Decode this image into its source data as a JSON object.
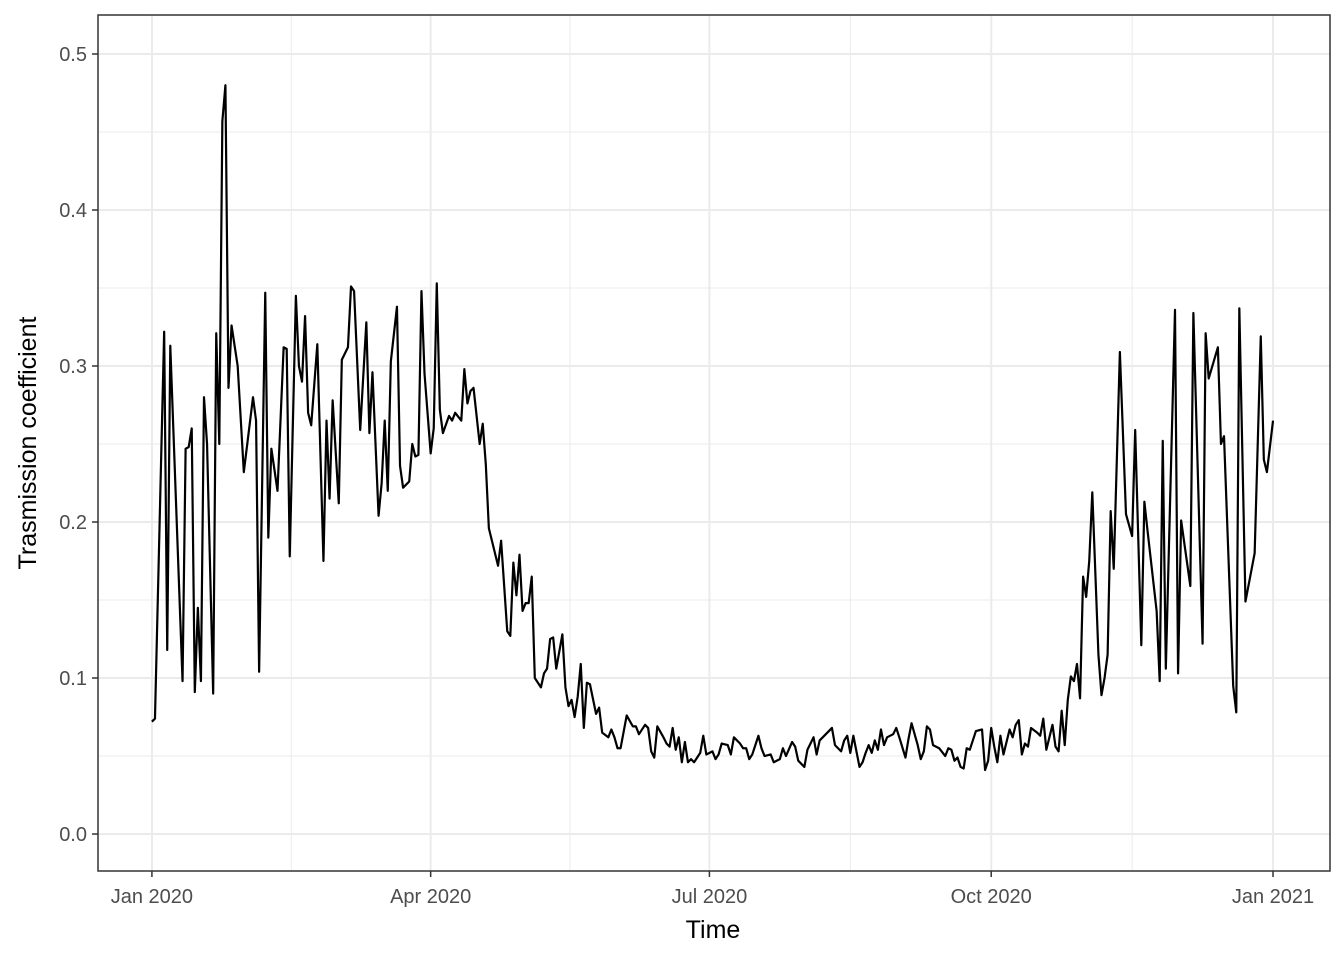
{
  "chart_data": {
    "type": "line",
    "x_label": "Time",
    "y_label": "Trasmission coefficient",
    "xlim": [
      -17.6,
      384.6
    ],
    "ylim": [
      -0.0237,
      0.525
    ],
    "xticks": [
      {
        "value": 0,
        "label": "Jan 2020"
      },
      {
        "value": 91,
        "label": "Apr 2020"
      },
      {
        "value": 182,
        "label": "Jul 2020"
      },
      {
        "value": 274,
        "label": "Oct 2020"
      },
      {
        "value": 366,
        "label": "Jan 2021"
      }
    ],
    "xminorticks": [
      45.5,
      136.5,
      228,
      320
    ],
    "yticks": [
      {
        "value": 0,
        "label": "0.0"
      },
      0.1,
      0.2,
      0.3,
      0.4,
      0.5
    ],
    "yminorticks": [
      0.05,
      0.15,
      0.25,
      0.35,
      0.45
    ],
    "grid": true,
    "series": [
      {
        "name": "Trasmission coefficient",
        "color": "#000000",
        "x": [
          0,
          1,
          4,
          5,
          6,
          10,
          11,
          12,
          13,
          14,
          15,
          16,
          17,
          18,
          20,
          21,
          22,
          23,
          24,
          25,
          26,
          28,
          30,
          33,
          34,
          35,
          37,
          38,
          39,
          41,
          43,
          44,
          45,
          47,
          48,
          49,
          50,
          51,
          52,
          54,
          56,
          57,
          58,
          59,
          61,
          62,
          64,
          65,
          66,
          68,
          70,
          71,
          72,
          74,
          75,
          76,
          77,
          78,
          80,
          81,
          82,
          84,
          85,
          86,
          87,
          88,
          89,
          91,
          92,
          93,
          94,
          95,
          97,
          98,
          99,
          101,
          102,
          103,
          104,
          105,
          107,
          108,
          109,
          110,
          113,
          114,
          116,
          117,
          118,
          119,
          120,
          121,
          122,
          123,
          124,
          125,
          127,
          128,
          129,
          130,
          131,
          132,
          134,
          135,
          136,
          137,
          138,
          139,
          140,
          141,
          142,
          143,
          145,
          146,
          147,
          149,
          150,
          151,
          152,
          153,
          155,
          157,
          158,
          159,
          161,
          162,
          163,
          164,
          165,
          167,
          168,
          169,
          170,
          171,
          172,
          173,
          174,
          175,
          176,
          177,
          179,
          180,
          181,
          183,
          184,
          185,
          186,
          188,
          189,
          190,
          192,
          193,
          194,
          195,
          196,
          198,
          199,
          200,
          202,
          203,
          205,
          206,
          207,
          209,
          210,
          211,
          213,
          214,
          216,
          217,
          218,
          219,
          221,
          222,
          223,
          225,
          226,
          227,
          228,
          229,
          231,
          232,
          233,
          234,
          235,
          236,
          237,
          238,
          239,
          240,
          242,
          243,
          244,
          246,
          247,
          248,
          250,
          251,
          252,
          253,
          254,
          255,
          257,
          259,
          260,
          261,
          262,
          263,
          264,
          265,
          266,
          267,
          269,
          271,
          272,
          273,
          274,
          275,
          276,
          277,
          278,
          280,
          281,
          282,
          283,
          284,
          285,
          286,
          287,
          289,
          290,
          291,
          292,
          294,
          295,
          296,
          297,
          298,
          299,
          300,
          301,
          302,
          303,
          304,
          305,
          306,
          307,
          309,
          310,
          311,
          312,
          313,
          314,
          316,
          318,
          320,
          321,
          323,
          324,
          325,
          328,
          329,
          330,
          331,
          334,
          335,
          336,
          339,
          340,
          343,
          344,
          345,
          348,
          349,
          350,
          353,
          354,
          355,
          357,
          360,
          362,
          363,
          364,
          366
        ],
        "values": [
          0.072,
          0.074,
          0.322,
          0.118,
          0.313,
          0.098,
          0.247,
          0.248,
          0.26,
          0.091,
          0.145,
          0.098,
          0.28,
          0.25,
          0.09,
          0.321,
          0.25,
          0.457,
          0.48,
          0.286,
          0.326,
          0.3,
          0.232,
          0.28,
          0.265,
          0.104,
          0.347,
          0.19,
          0.247,
          0.22,
          0.312,
          0.311,
          0.178,
          0.345,
          0.3,
          0.29,
          0.332,
          0.27,
          0.262,
          0.314,
          0.175,
          0.265,
          0.215,
          0.278,
          0.212,
          0.304,
          0.312,
          0.351,
          0.348,
          0.259,
          0.328,
          0.257,
          0.296,
          0.204,
          0.225,
          0.265,
          0.22,
          0.303,
          0.338,
          0.236,
          0.222,
          0.226,
          0.25,
          0.242,
          0.243,
          0.348,
          0.295,
          0.244,
          0.26,
          0.353,
          0.272,
          0.257,
          0.268,
          0.265,
          0.27,
          0.265,
          0.298,
          0.276,
          0.284,
          0.286,
          0.25,
          0.263,
          0.237,
          0.196,
          0.172,
          0.188,
          0.13,
          0.127,
          0.174,
          0.153,
          0.179,
          0.143,
          0.148,
          0.148,
          0.165,
          0.1,
          0.094,
          0.103,
          0.106,
          0.125,
          0.126,
          0.106,
          0.128,
          0.094,
          0.082,
          0.086,
          0.075,
          0.088,
          0.109,
          0.068,
          0.097,
          0.096,
          0.077,
          0.081,
          0.065,
          0.062,
          0.067,
          0.062,
          0.055,
          0.055,
          0.076,
          0.069,
          0.069,
          0.064,
          0.07,
          0.068,
          0.053,
          0.049,
          0.069,
          0.062,
          0.058,
          0.056,
          0.068,
          0.054,
          0.062,
          0.046,
          0.059,
          0.046,
          0.048,
          0.046,
          0.052,
          0.063,
          0.051,
          0.053,
          0.048,
          0.051,
          0.058,
          0.057,
          0.051,
          0.062,
          0.058,
          0.055,
          0.055,
          0.048,
          0.051,
          0.063,
          0.055,
          0.05,
          0.051,
          0.046,
          0.048,
          0.055,
          0.05,
          0.059,
          0.056,
          0.047,
          0.043,
          0.054,
          0.062,
          0.051,
          0.06,
          0.062,
          0.066,
          0.068,
          0.057,
          0.053,
          0.06,
          0.063,
          0.052,
          0.063,
          0.043,
          0.046,
          0.052,
          0.057,
          0.052,
          0.06,
          0.054,
          0.067,
          0.057,
          0.062,
          0.064,
          0.068,
          0.062,
          0.049,
          0.061,
          0.071,
          0.057,
          0.048,
          0.053,
          0.069,
          0.067,
          0.057,
          0.055,
          0.05,
          0.055,
          0.054,
          0.047,
          0.049,
          0.043,
          0.042,
          0.055,
          0.054,
          0.066,
          0.067,
          0.041,
          0.047,
          0.068,
          0.056,
          0.046,
          0.063,
          0.051,
          0.067,
          0.062,
          0.07,
          0.073,
          0.051,
          0.058,
          0.056,
          0.068,
          0.065,
          0.063,
          0.074,
          0.054,
          0.07,
          0.056,
          0.053,
          0.079,
          0.057,
          0.086,
          0.101,
          0.098,
          0.109,
          0.087,
          0.165,
          0.152,
          0.175,
          0.219,
          0.115,
          0.089,
          0.1,
          0.115,
          0.207,
          0.17,
          0.309,
          0.205,
          0.191,
          0.259,
          0.121,
          0.213,
          0.195,
          0.143,
          0.098,
          0.252,
          0.106,
          0.336,
          0.103,
          0.201,
          0.159,
          0.334,
          0.122,
          0.321,
          0.292,
          0.312,
          0.25,
          0.255,
          0.095,
          0.078,
          0.337,
          0.149,
          0.18,
          0.319,
          0.24,
          0.232,
          0.265
        ]
      }
    ]
  }
}
